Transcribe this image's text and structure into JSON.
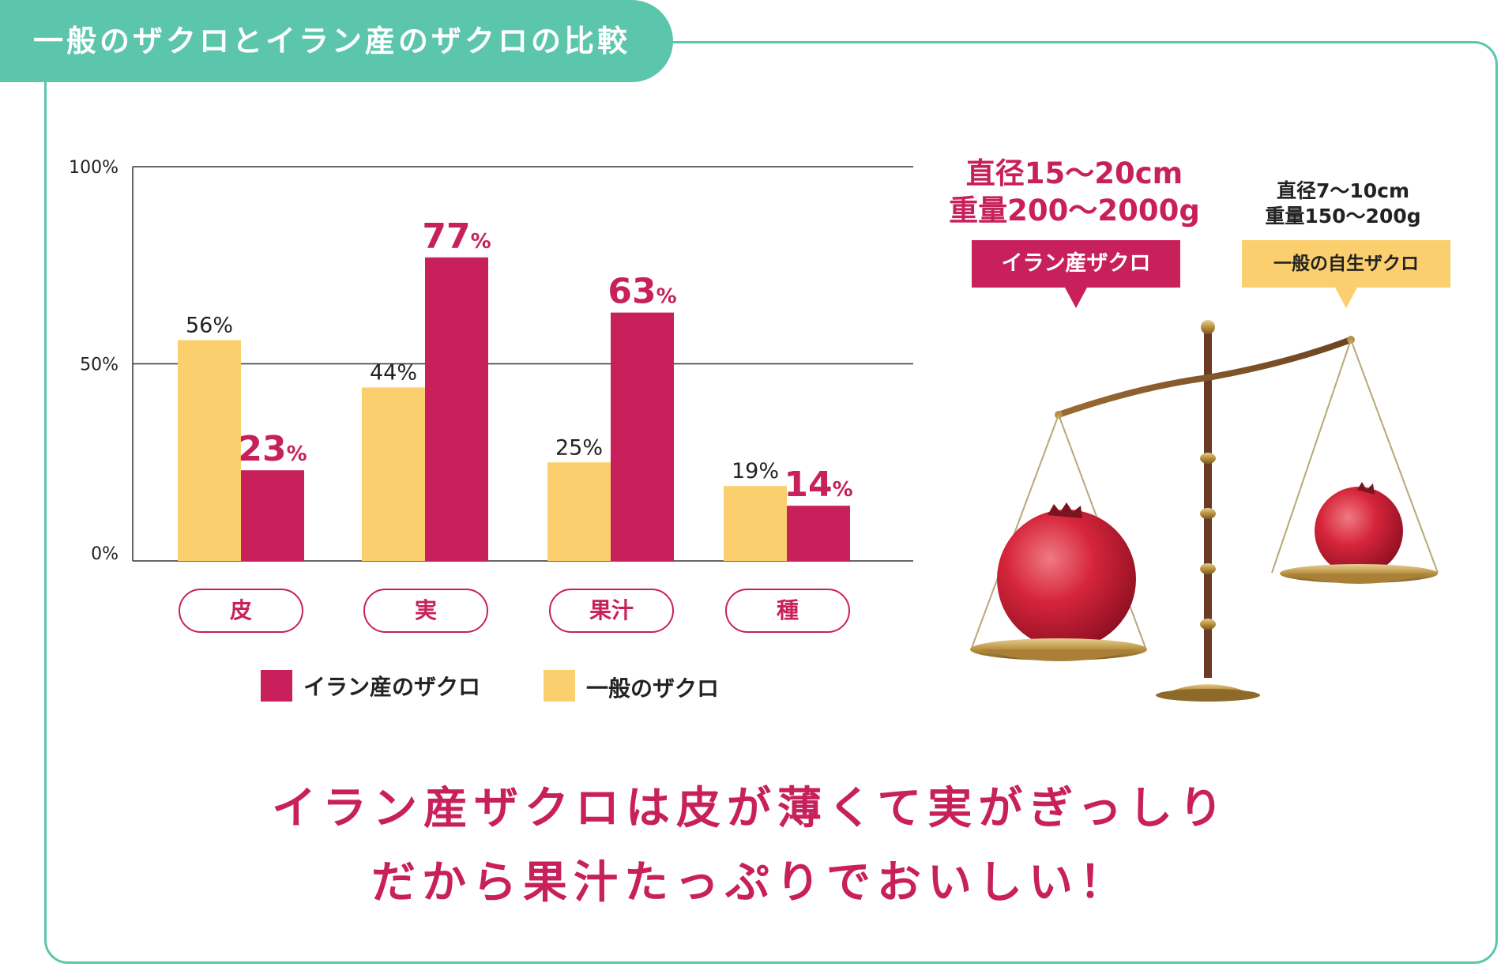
{
  "title": "一般のザクロとイラン産のザクロの比較",
  "colors": {
    "iran": "#c8205b",
    "general": "#fbcf6e",
    "accent": "#5cc6ad"
  },
  "chart_data": {
    "type": "bar",
    "categories": [
      "皮",
      "実",
      "果汁",
      "種"
    ],
    "series": [
      {
        "name": "一般のザクロ",
        "values": [
          56,
          44,
          25,
          19
        ]
      },
      {
        "name": "イラン産のザクロ",
        "values": [
          23,
          77,
          63,
          14
        ]
      }
    ],
    "ylim": [
      0,
      100
    ],
    "y_ticks": [
      "0%",
      "50%",
      "100%"
    ],
    "value_unit": "%",
    "legend_position": "bottom"
  },
  "legend": {
    "iran_label": "イラン産のザクロ",
    "general_label": "一般のザクロ"
  },
  "comparison": {
    "iran": {
      "diameter": "直径15〜20cm",
      "weight": "重量200〜2000g",
      "tag": "イラン産ザクロ"
    },
    "general": {
      "diameter": "直径7〜10cm",
      "weight": "重量150〜200g",
      "tag": "一般の自生ザクロ"
    }
  },
  "message": {
    "line1": "イラン産ザクロは皮が薄くて実がぎっしり",
    "line2": "だから果汁たっぷりでおいしい！"
  }
}
